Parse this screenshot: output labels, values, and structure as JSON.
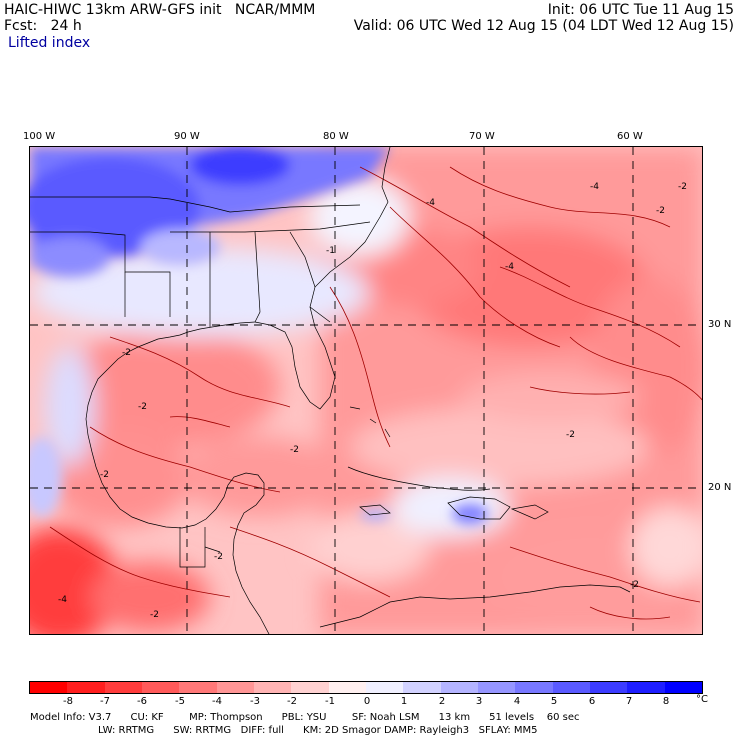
{
  "header": {
    "line1_left": "HAIC-HIWC 13km ARW-GFS init   NCAR/MMM",
    "line1_right": "Init: 06 UTC Tue 11 Aug 15",
    "line2_left": "Fcst:   24 h",
    "line2_right": "Valid: 06 UTC Wed 12 Aug 15 (04 LDT Wed 12 Aug 15)",
    "field": "Lifted index"
  },
  "axes": {
    "lon_labels": [
      "100 W",
      "90 W",
      "80 W",
      "70 W",
      "60 W"
    ],
    "lat_labels": [
      "30 N",
      "20 N"
    ]
  },
  "contour_labels": [
    "-4",
    "-4",
    "-4",
    "-2",
    "-2",
    "-2",
    "-2",
    "-2",
    "-2",
    "-2",
    "-1",
    "-2",
    "-2",
    "-2",
    "-4"
  ],
  "colorbar": {
    "ticks": [
      "-8",
      "-7",
      "-6",
      "-5",
      "-4",
      "-3",
      "-2",
      "-1",
      "0",
      "1",
      "2",
      "3",
      "4",
      "5",
      "6",
      "7",
      "8"
    ],
    "unit": "°C",
    "colors": [
      "#ff0000",
      "#ff1e1e",
      "#ff3c3c",
      "#ff5a5a",
      "#ff7878",
      "#ff9696",
      "#ffb4b4",
      "#ffd2d2",
      "#fff0f0",
      "#f0f0ff",
      "#d2d2ff",
      "#b4b4ff",
      "#9696ff",
      "#7878ff",
      "#5a5aff",
      "#3c3cff",
      "#1e1eff",
      "#0000ff"
    ]
  },
  "footer": {
    "line1": "Model Info: V3.7      CU: KF        MP: Thompson      PBL: YSU        SF: Noah LSM      13 km      51 levels    60 sec",
    "line2": "LW: RRTMG      SW: RRTMG   DIFF: full      KM: 2D Smagor DAMP: Rayleigh3   SFLAY: MM5"
  }
}
